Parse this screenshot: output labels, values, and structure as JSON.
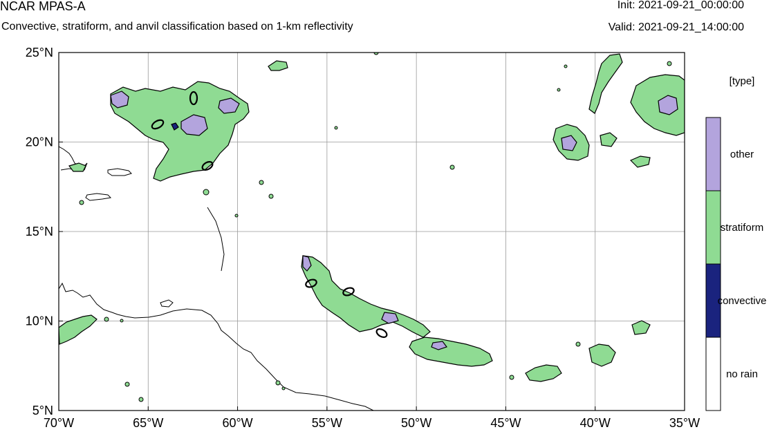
{
  "header": {
    "title": "NCAR MPAS-A",
    "subtitle": "Convective, stratiform, and anvil classification based on 1-km reflectivity",
    "init": "Init: 2021-09-21_00:00:00",
    "valid": "Valid: 2021-09-21_14:00:00"
  },
  "map": {
    "lon_range": [
      -70,
      -35
    ],
    "lat_range": [
      5,
      25
    ],
    "x_ticks": [
      {
        "value": -70,
        "label": "70°W"
      },
      {
        "value": -65,
        "label": "65°W"
      },
      {
        "value": -60,
        "label": "60°W"
      },
      {
        "value": -55,
        "label": "55°W"
      },
      {
        "value": -50,
        "label": "50°W"
      },
      {
        "value": -45,
        "label": "45°W"
      },
      {
        "value": -40,
        "label": "40°W"
      },
      {
        "value": -35,
        "label": "35°W"
      }
    ],
    "y_ticks": [
      {
        "value": 25,
        "label": "25°N"
      },
      {
        "value": 20,
        "label": "20°N"
      },
      {
        "value": 15,
        "label": "15°N"
      },
      {
        "value": 10,
        "label": "10°N"
      },
      {
        "value": 5,
        "label": "5°N"
      }
    ],
    "gridlines": true,
    "colors": {
      "other": "#b3a4dd",
      "stratiform": "#8fdb93",
      "convective": "#1a237e",
      "no_rain": "#ffffff",
      "outline": "#000000",
      "grid": "#999999"
    }
  },
  "legend": {
    "title": "[type]",
    "items": [
      {
        "label": "other",
        "color": "#b3a4dd"
      },
      {
        "label": "stratiform",
        "color": "#8fdb93"
      },
      {
        "label": "convective",
        "color": "#1a237e"
      },
      {
        "label": "no rain",
        "color": "#ffffff"
      }
    ]
  }
}
